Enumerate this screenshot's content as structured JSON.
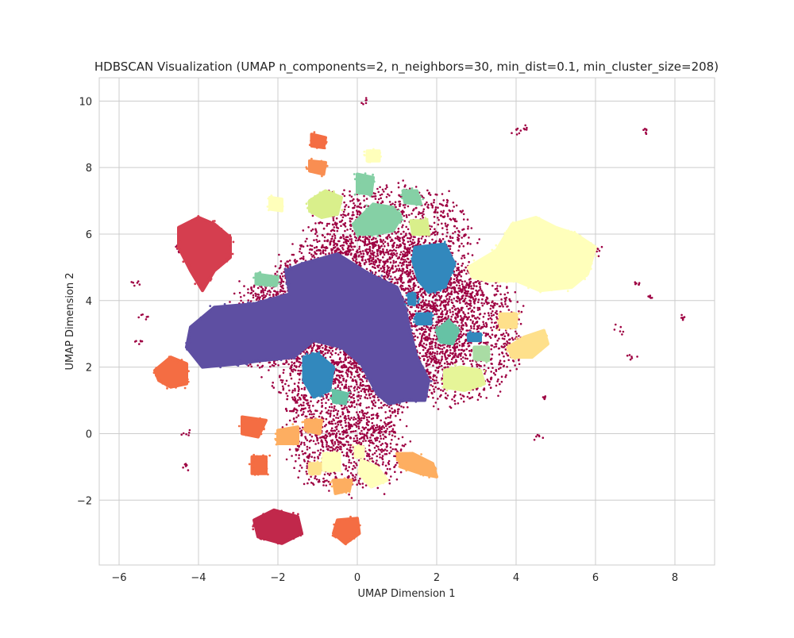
{
  "chart_data": {
    "type": "scatter",
    "title": "HDBSCAN Visualization (UMAP n_components=2, n_neighbors=30, min_dist=0.1, min_cluster_size=208)",
    "xlabel": "UMAP Dimension 1",
    "ylabel": "UMAP Dimension 2",
    "xlim": [
      -6.5,
      9.0
    ],
    "ylim": [
      -3.95,
      10.7
    ],
    "xticks": [
      -6,
      -4,
      -2,
      0,
      2,
      4,
      6,
      8
    ],
    "yticks": [
      -2,
      0,
      2,
      4,
      6,
      8,
      10
    ],
    "grid": true,
    "legend": "none",
    "colormap": "Spectral",
    "colors": {
      "noise": "#9e0142",
      "background": "#ffffff",
      "grid": "#cccccc",
      "text": "#262626"
    },
    "noise_series": {
      "name": "noise",
      "color": "#9e0142",
      "regions": [
        {
          "cx": 0.3,
          "cy": 3.6,
          "rx": 2.8,
          "ry": 2.4
        },
        {
          "cx": -0.3,
          "cy": 1.2,
          "rx": 1.6,
          "ry": 1.6
        },
        {
          "cx": 0.8,
          "cy": 5.8,
          "rx": 2.0,
          "ry": 1.6
        },
        {
          "cx": -0.2,
          "cy": -0.6,
          "rx": 1.4,
          "ry": 1.1
        },
        {
          "cx": 2.5,
          "cy": 3.0,
          "rx": 1.6,
          "ry": 2.0
        },
        {
          "cx": -2.0,
          "cy": 3.3,
          "rx": 1.3,
          "ry": 1.3
        }
      ],
      "outliers": [
        [
          0.2,
          10.0
        ],
        [
          4.0,
          9.1
        ],
        [
          4.2,
          9.2
        ],
        [
          7.3,
          9.1
        ],
        [
          -5.6,
          4.5
        ],
        [
          -5.5,
          2.75
        ],
        [
          -5.4,
          3.5
        ],
        [
          -4.3,
          0.0
        ],
        [
          -4.3,
          -0.95
        ],
        [
          6.1,
          5.5
        ],
        [
          7.1,
          4.5
        ],
        [
          7.4,
          4.1
        ],
        [
          8.25,
          3.5
        ],
        [
          4.6,
          -0.1
        ],
        [
          4.7,
          1.1
        ],
        [
          6.6,
          3.1
        ],
        [
          6.9,
          2.3
        ],
        [
          -4.5,
          5.5
        ]
      ]
    },
    "clusters": [
      {
        "id": "c-large",
        "color": "#5e4fa2",
        "cx": 0.2,
        "cy": 3.0
      },
      {
        "id": "c-blue-right",
        "color": "#3288bd",
        "cx": 1.9,
        "cy": 5.0
      },
      {
        "id": "c-blue-left",
        "color": "#3288bd",
        "cx": -1.0,
        "cy": 1.8
      },
      {
        "id": "c-yellow-right",
        "color": "#ffffbb",
        "cx": 4.8,
        "cy": 5.2
      },
      {
        "id": "c-red-left",
        "color": "#d53e4f",
        "cx": -4.0,
        "cy": 5.7
      },
      {
        "id": "c-dark-red",
        "color": "#c1284b",
        "cx": -2.0,
        "cy": -2.8
      },
      {
        "id": "c-orange-left",
        "color": "#f46d43",
        "cx": -4.6,
        "cy": 1.85
      },
      {
        "id": "c-green-top",
        "color": "#85d0a5",
        "cx": 0.6,
        "cy": 6.4
      },
      {
        "id": "c-lime-top",
        "color": "#d9ef8b",
        "cx": -0.8,
        "cy": 6.9
      },
      {
        "id": "c-lime-right",
        "color": "#e6f598",
        "cx": 2.7,
        "cy": 1.7
      },
      {
        "id": "c-tan-right",
        "color": "#fee08b",
        "cx": 4.3,
        "cy": 2.7
      },
      {
        "id": "c-teal",
        "color": "#66c2a5",
        "cx": 2.25,
        "cy": 3.0
      },
      {
        "id": "c-salmon-bottom",
        "color": "#fdae61",
        "cx": 1.5,
        "cy": -0.9
      },
      {
        "id": "c-orange-bottom",
        "color": "#f46d43",
        "cx": 0.0,
        "cy": -2.9
      }
    ]
  }
}
